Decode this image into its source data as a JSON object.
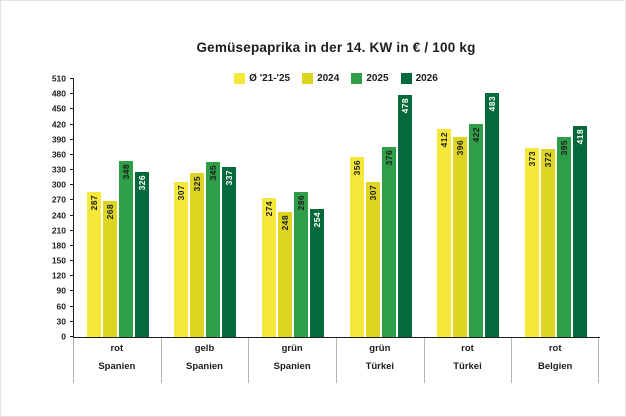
{
  "title": "Gemüsepaprika in der 14. KW in € / 100 kg",
  "chart_data": {
    "type": "bar",
    "title": "Gemüsepaprika in der 14. KW in € / 100 kg",
    "categories": [
      {
        "variety": "rot",
        "origin": "Spanien"
      },
      {
        "variety": "gelb",
        "origin": "Spanien"
      },
      {
        "variety": "grün",
        "origin": "Spanien"
      },
      {
        "variety": "grün",
        "origin": "Türkei"
      },
      {
        "variety": "rot",
        "origin": "Türkei"
      },
      {
        "variety": "rot",
        "origin": "Belgien"
      }
    ],
    "series": [
      {
        "name": "Ø '21-'25",
        "color": "#f5e83a",
        "label_color": "#1d1d1b",
        "values": [
          287,
          307,
          274,
          356,
          412,
          373
        ]
      },
      {
        "name": "2024",
        "color": "#ddd520",
        "label_color": "#1d1d1b",
        "values": [
          268,
          325,
          248,
          307,
          396,
          372
        ]
      },
      {
        "name": "2025",
        "color": "#2f9e48",
        "label_color": "#1d1d1b",
        "values": [
          348,
          345,
          286,
          376,
          422,
          395
        ]
      },
      {
        "name": "2026",
        "color": "#06693b",
        "label_color": "#ffffff",
        "values": [
          326,
          337,
          254,
          478,
          483,
          418
        ]
      }
    ],
    "ylabel": "",
    "xlabel": "",
    "ylim": [
      0,
      510
    ],
    "ytick_step": 30,
    "grid": false,
    "legend_position": "top-center",
    "value_labels": "rotated-vertical-at-bar-top"
  }
}
